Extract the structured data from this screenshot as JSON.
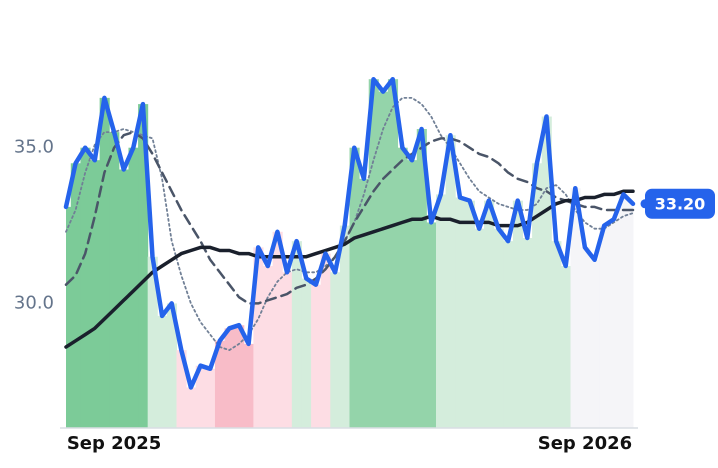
{
  "chart_data": {
    "type": "line",
    "categories": [
      null,
      null,
      null,
      null,
      null,
      "Sep 2025",
      null,
      null,
      null,
      null,
      null,
      null,
      null,
      null,
      null,
      null,
      null,
      null,
      null,
      null,
      null,
      null,
      null,
      null,
      null,
      null,
      null,
      null,
      null,
      null,
      null,
      null,
      null,
      null,
      null,
      null,
      null,
      null,
      null,
      null,
      null,
      null,
      null,
      null,
      null,
      null,
      null,
      null,
      null,
      null,
      null,
      null,
      null,
      null,
      "Sep 2026",
      null,
      null,
      null,
      null,
      null
    ],
    "ylim": [
      26,
      39.1
    ],
    "yticks": [
      {
        "value": 30,
        "label": "30.0"
      },
      {
        "value": 35,
        "label": "35.0"
      }
    ],
    "grid": false,
    "shade": [
      "#7ccb98",
      "#7ccb98",
      "#7ccb98",
      "#7ccb98",
      "#7ccb98",
      "#7ccb98",
      "#7ccb98",
      "#7ccb98",
      "#7ccb98",
      "#d4eddc",
      "#d4eddc",
      "#d4eddc",
      "#fddde4",
      "#fddde4",
      "#fddde4",
      "#fddde4",
      "#f8bcc8",
      "#f8bcc8",
      "#f8bcc8",
      "#f8bcc8",
      "#fddde4",
      "#fddde4",
      "#fddde4",
      "#fddde4",
      "#d4eddc",
      "#d4eddc",
      "#fddde4",
      "#fddde4",
      "#d4eddc",
      "#d4eddc",
      "#94d4aa",
      "#94d4aa",
      "#94d4aa",
      "#94d4aa",
      "#94d4aa",
      "#94d4aa",
      "#94d4aa",
      "#94d4aa",
      "#94d4aa",
      "#d4eddc",
      "#d4eddc",
      "#d4eddc",
      "#d4eddc",
      "#d4eddc",
      "#d4eddc",
      "#d4eddc",
      "#d4eddc",
      "#d4eddc",
      "#d4eddc",
      "#d4eddc",
      "#d4eddc",
      "#d4eddc",
      "#d4eddc",
      "#f5f5f8",
      "#f5f5f8",
      "#f5f5f8",
      "#f5f5f8",
      "#f5f5f8",
      "#f5f5f8",
      "#f5f5f8"
    ],
    "series": [
      {
        "color": "#2563eb",
        "style": "solid",
        "width": 4.5,
        "values": [
          33.1,
          34.5,
          35.0,
          34.6,
          36.6,
          35.5,
          34.3,
          35.0,
          36.4,
          31.5,
          29.6,
          30.0,
          28.5,
          27.3,
          28.0,
          27.9,
          28.8,
          29.2,
          29.3,
          28.7,
          31.8,
          31.2,
          32.3,
          31.0,
          32.0,
          30.8,
          30.6,
          31.6,
          31.0,
          32.5,
          35.0,
          34.0,
          37.2,
          36.8,
          37.2,
          35.0,
          34.6,
          35.6,
          32.6,
          33.5,
          35.4,
          33.4,
          33.3,
          32.4,
          33.3,
          32.4,
          32.0,
          33.3,
          32.1,
          34.5,
          36.0,
          32.0,
          31.2,
          33.7,
          31.8,
          31.4,
          32.5,
          32.7,
          33.5,
          33.2
        ],
        "value_labels": [
          null,
          null,
          null,
          null,
          null,
          null,
          null,
          null,
          null,
          null,
          null,
          null,
          null,
          null,
          null,
          null,
          null,
          null,
          null,
          null,
          null,
          null,
          null,
          null,
          null,
          null,
          null,
          null,
          null,
          null,
          null,
          null,
          null,
          null,
          null,
          null,
          null,
          null,
          null,
          null,
          null,
          null,
          null,
          null,
          null,
          null,
          null,
          null,
          null,
          null,
          null,
          null,
          null,
          null,
          null,
          null,
          null,
          null,
          null,
          "33.20"
        ]
      },
      {
        "color": "#1a202c",
        "style": "solid",
        "width": 3.5,
        "values": [
          28.6,
          28.8,
          29.0,
          29.2,
          29.5,
          29.8,
          30.1,
          30.4,
          30.7,
          31.0,
          31.2,
          31.4,
          31.6,
          31.7,
          31.8,
          31.8,
          31.7,
          31.7,
          31.6,
          31.6,
          31.5,
          31.5,
          31.5,
          31.5,
          31.5,
          31.5,
          31.6,
          31.7,
          31.8,
          31.9,
          32.1,
          32.2,
          32.3,
          32.4,
          32.5,
          32.6,
          32.7,
          32.7,
          32.8,
          32.7,
          32.7,
          32.6,
          32.6,
          32.6,
          32.6,
          32.5,
          32.5,
          32.5,
          32.6,
          32.8,
          33.0,
          33.2,
          33.3,
          33.3,
          33.4,
          33.4,
          33.5,
          33.5,
          33.6,
          33.6
        ]
      },
      {
        "color": "#4a5568",
        "style": "dashed",
        "width": 2.5,
        "values": [
          30.6,
          30.9,
          31.6,
          32.8,
          34.2,
          35.0,
          35.4,
          35.5,
          35.3,
          34.8,
          34.2,
          33.6,
          33.0,
          32.5,
          32.0,
          31.4,
          31.0,
          30.6,
          30.2,
          30.0,
          30.0,
          30.1,
          30.2,
          30.3,
          30.5,
          30.6,
          30.8,
          31.1,
          31.5,
          32.0,
          32.6,
          33.1,
          33.6,
          34.0,
          34.3,
          34.6,
          34.8,
          35.0,
          35.2,
          35.3,
          35.3,
          35.2,
          35.0,
          34.8,
          34.7,
          34.5,
          34.2,
          34.0,
          33.9,
          33.7,
          33.6,
          33.4,
          33.3,
          33.2,
          33.1,
          33.1,
          33.0,
          33.0,
          33.0,
          33.0
        ]
      },
      {
        "color": "#718096",
        "style": "dotted",
        "width": 1.8,
        "values": [
          32.3,
          33.0,
          34.2,
          35.1,
          35.5,
          35.5,
          35.6,
          35.5,
          35.4,
          35.3,
          34.0,
          32.0,
          30.9,
          30.0,
          29.4,
          29.0,
          28.6,
          28.5,
          28.7,
          29.0,
          29.5,
          30.2,
          30.7,
          31.0,
          31.1,
          31.0,
          31.0,
          31.2,
          31.5,
          32.0,
          32.6,
          33.5,
          34.6,
          35.6,
          36.3,
          36.6,
          36.6,
          36.4,
          36.0,
          35.4,
          35.0,
          34.5,
          34.0,
          33.6,
          33.4,
          33.2,
          33.1,
          33.0,
          33.0,
          33.2,
          33.7,
          33.8,
          33.5,
          33.0,
          32.6,
          32.4,
          32.4,
          32.6,
          32.8,
          32.9
        ]
      }
    ]
  }
}
